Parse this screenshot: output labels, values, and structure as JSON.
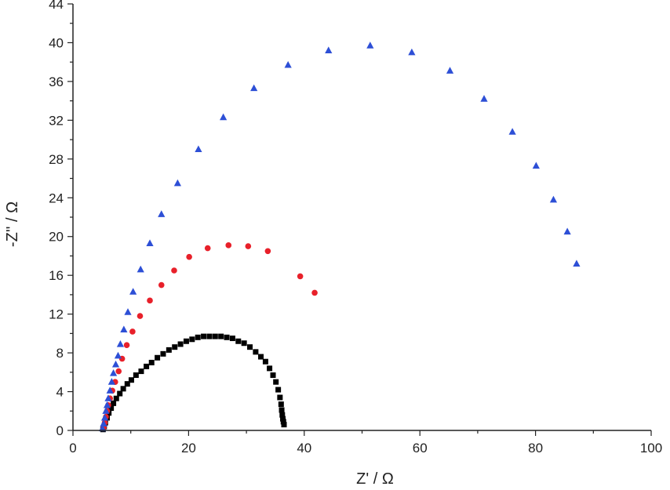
{
  "chart_data": {
    "type": "scatter",
    "title": "",
    "xlabel": "Z' / Ω",
    "ylabel": "-Z'' / Ω",
    "xlim": [
      0,
      100
    ],
    "ylim": [
      0,
      44
    ],
    "xticks": [
      0,
      20,
      40,
      60,
      80,
      100
    ],
    "yticks": [
      0,
      4,
      8,
      12,
      16,
      20,
      24,
      28,
      32,
      36,
      40,
      44
    ],
    "grid": false,
    "legend": "none",
    "series": [
      {
        "marker": "square",
        "color": "#000000",
        "points": [
          [
            5.2,
            0.1
          ],
          [
            5.4,
            0.4
          ],
          [
            5.6,
            0.8
          ],
          [
            5.9,
            1.3
          ],
          [
            6.2,
            1.8
          ],
          [
            6.6,
            2.3
          ],
          [
            7.0,
            2.8
          ],
          [
            7.5,
            3.3
          ],
          [
            8.1,
            3.8
          ],
          [
            8.7,
            4.3
          ],
          [
            9.4,
            4.8
          ],
          [
            10.1,
            5.2
          ],
          [
            10.9,
            5.7
          ],
          [
            11.8,
            6.1
          ],
          [
            12.7,
            6.6
          ],
          [
            13.6,
            7.0
          ],
          [
            14.6,
            7.5
          ],
          [
            15.6,
            7.9
          ],
          [
            16.6,
            8.3
          ],
          [
            17.6,
            8.6
          ],
          [
            18.6,
            8.9
          ],
          [
            19.6,
            9.2
          ],
          [
            20.6,
            9.4
          ],
          [
            21.6,
            9.6
          ],
          [
            22.6,
            9.7
          ],
          [
            23.6,
            9.7
          ],
          [
            24.6,
            9.7
          ],
          [
            25.6,
            9.7
          ],
          [
            26.6,
            9.6
          ],
          [
            27.6,
            9.5
          ],
          [
            28.6,
            9.2
          ],
          [
            29.6,
            9.0
          ],
          [
            30.6,
            8.6
          ],
          [
            31.6,
            8.1
          ],
          [
            32.5,
            7.6
          ],
          [
            33.3,
            7.1
          ],
          [
            34.0,
            6.4
          ],
          [
            34.6,
            5.7
          ],
          [
            35.1,
            5.0
          ],
          [
            35.5,
            4.2
          ],
          [
            35.8,
            3.4
          ],
          [
            36.0,
            2.7
          ],
          [
            36.1,
            2.1
          ],
          [
            36.2,
            1.6
          ],
          [
            36.3,
            1.2
          ],
          [
            36.4,
            0.9
          ],
          [
            36.5,
            0.6
          ]
        ]
      },
      {
        "marker": "circle",
        "color": "#e8202a",
        "points": [
          [
            5.3,
            0.3
          ],
          [
            5.5,
            0.8
          ],
          [
            5.7,
            1.4
          ],
          [
            5.9,
            2.0
          ],
          [
            6.1,
            2.6
          ],
          [
            6.4,
            3.3
          ],
          [
            6.8,
            4.1
          ],
          [
            7.3,
            5.0
          ],
          [
            7.9,
            6.1
          ],
          [
            8.5,
            7.4
          ],
          [
            9.3,
            8.8
          ],
          [
            10.3,
            10.2
          ],
          [
            11.6,
            11.8
          ],
          [
            13.3,
            13.4
          ],
          [
            15.3,
            15.0
          ],
          [
            17.5,
            16.5
          ],
          [
            20.1,
            17.9
          ],
          [
            23.3,
            18.8
          ],
          [
            26.9,
            19.1
          ],
          [
            30.3,
            19.0
          ],
          [
            33.7,
            18.5
          ],
          [
            39.3,
            15.9
          ],
          [
            41.8,
            14.2
          ]
        ]
      },
      {
        "marker": "triangle",
        "color": "#2d4fd6",
        "points": [
          [
            5.1,
            0.2
          ],
          [
            5.3,
            0.7
          ],
          [
            5.5,
            1.3
          ],
          [
            5.7,
            2.0
          ],
          [
            5.9,
            2.6
          ],
          [
            6.1,
            3.3
          ],
          [
            6.4,
            4.1
          ],
          [
            6.7,
            5.0
          ],
          [
            7.0,
            5.9
          ],
          [
            7.4,
            6.8
          ],
          [
            7.8,
            7.7
          ],
          [
            8.2,
            8.9
          ],
          [
            8.8,
            10.4
          ],
          [
            9.5,
            12.2
          ],
          [
            10.4,
            14.3
          ],
          [
            11.7,
            16.6
          ],
          [
            13.3,
            19.3
          ],
          [
            15.3,
            22.3
          ],
          [
            18.1,
            25.5
          ],
          [
            21.7,
            29.0
          ],
          [
            26.0,
            32.3
          ],
          [
            31.3,
            35.3
          ],
          [
            37.2,
            37.7
          ],
          [
            44.2,
            39.2
          ],
          [
            51.4,
            39.7
          ],
          [
            58.6,
            39.0
          ],
          [
            65.2,
            37.1
          ],
          [
            71.1,
            34.2
          ],
          [
            76.0,
            30.8
          ],
          [
            80.1,
            27.3
          ],
          [
            83.1,
            23.8
          ],
          [
            85.5,
            20.5
          ],
          [
            87.1,
            17.2
          ]
        ]
      }
    ]
  }
}
